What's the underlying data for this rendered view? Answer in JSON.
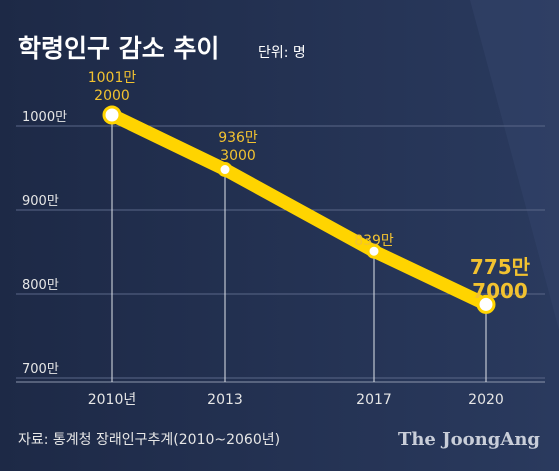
{
  "header": {
    "title": "학령인구 감소 추이",
    "unit": "단위: 명"
  },
  "footer": {
    "source": "자료: 통계청 장래인구추계(2010~2060년)",
    "logo_text": "The JoongAng"
  },
  "colors": {
    "background": "#2d3b5e",
    "background_dark": "#1f2b48",
    "line": "#ffd400",
    "label": "#f2c230",
    "text": "#ffffff",
    "axis_text": "#e6e6e6"
  },
  "chart_data": {
    "type": "line",
    "title": "학령인구 감소 추이",
    "unit": "단위: 명",
    "x": [
      2010,
      2013,
      2017,
      2020
    ],
    "xticks": [
      "2010년",
      "2013",
      "2017",
      "2020"
    ],
    "yticks": [
      "1000만",
      "900만",
      "800만",
      "700만"
    ],
    "ylim": [
      7000000,
      10000000
    ],
    "series": [
      {
        "values": [
          10012000,
          9363000,
          8390000,
          7757000
        ]
      }
    ],
    "data_labels": [
      [
        "1001만",
        "2000"
      ],
      [
        "936만",
        "3000"
      ],
      [
        "839만"
      ],
      [
        "775만",
        "7000"
      ]
    ],
    "grid": true
  }
}
